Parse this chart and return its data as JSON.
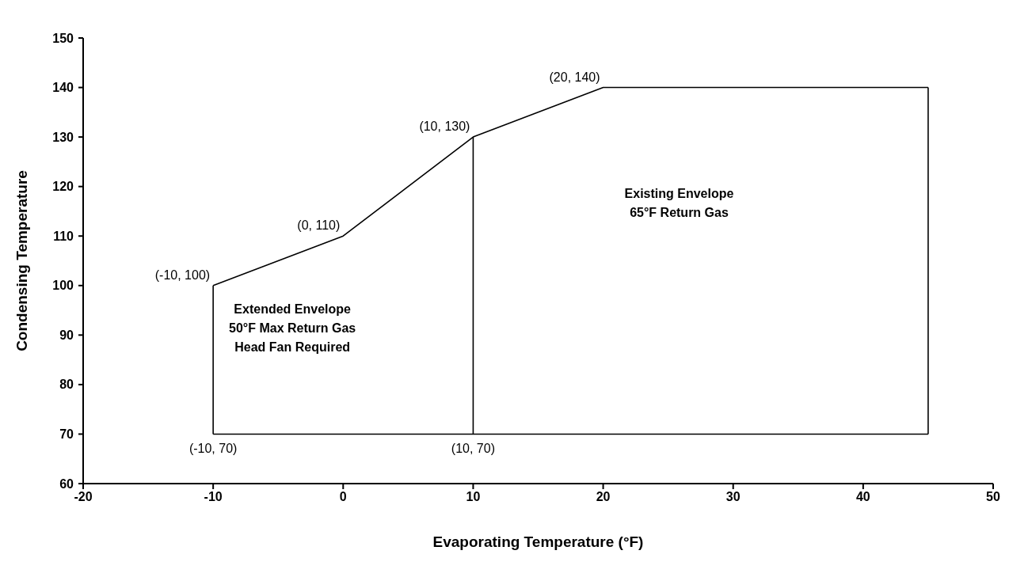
{
  "chart_data": {
    "type": "line",
    "xlabel": "Evaporating Temperature (°F)",
    "ylabel": "Condensing Temperature",
    "xlim": [
      -20,
      50
    ],
    "xticks": [
      -20,
      -10,
      0,
      10,
      20,
      30,
      40,
      50
    ],
    "ylim": [
      60,
      150
    ],
    "yticks": [
      60,
      70,
      80,
      90,
      100,
      110,
      120,
      130,
      140,
      150
    ],
    "grid": false,
    "marker": "none",
    "line_style": "solid",
    "series": [
      {
        "x": [
          -10,
          0,
          10,
          20,
          45
        ],
        "values": [
          100,
          110,
          130,
          140,
          140
        ],
        "color": "#000000"
      },
      {
        "x": [
          -10,
          10,
          45
        ],
        "values": [
          70,
          70,
          70
        ],
        "color": "#000000"
      },
      {
        "x": [
          -10,
          -10
        ],
        "values": [
          70,
          100
        ],
        "color": "#000000"
      },
      {
        "x": [
          10,
          10
        ],
        "values": [
          70,
          130
        ],
        "color": "#000000"
      },
      {
        "x": [
          45,
          45
        ],
        "values": [
          70,
          140
        ],
        "color": "#000000"
      }
    ],
    "annotations": [
      {
        "text": "(-10, 100)",
        "x": -10,
        "y": 100
      },
      {
        "text": "(0, 110)",
        "x": 0,
        "y": 110
      },
      {
        "text": "(10, 130)",
        "x": 10,
        "y": 130
      },
      {
        "text": "(20, 140)",
        "x": 20,
        "y": 140
      },
      {
        "text": "(-10, 70)",
        "x": -10,
        "y": 70
      },
      {
        "text": "(10, 70)",
        "x": 10,
        "y": 70
      },
      "Extended Envelope\n50°F Max Return Gas\nHead Fan Required",
      "Existing Envelope\n65°F Return Gas"
    ]
  }
}
